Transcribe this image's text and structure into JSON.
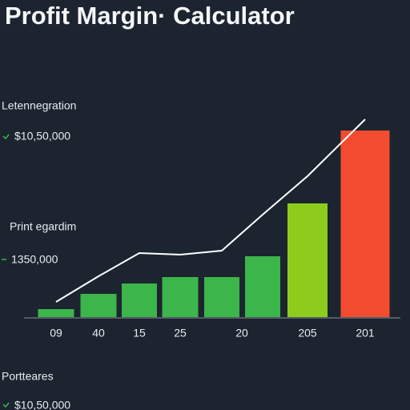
{
  "chart_data": {
    "type": "bar",
    "title": "Profit Margin· Calculator",
    "annotations": [
      "Letennegration",
      "$10,50,000",
      "Print egardim",
      "1350,000",
      "Portteares",
      "$10,50,000"
    ],
    "categories": [
      "09",
      "40",
      "15",
      "25",
      null,
      "20",
      "205",
      "201"
    ],
    "values": [
      10,
      29,
      42,
      50,
      50,
      76,
      142,
      233
    ],
    "colors": [
      "#3cb54a",
      "#3cb54a",
      "#3cb54a",
      "#3cb54a",
      "#3cb54a",
      "#3cb54a",
      "#8dcc1c",
      "#f24b30"
    ],
    "line": {
      "color": "#ffffff",
      "values": [
        19,
        51,
        80,
        78,
        83,
        128,
        176,
        247
      ]
    }
  }
}
